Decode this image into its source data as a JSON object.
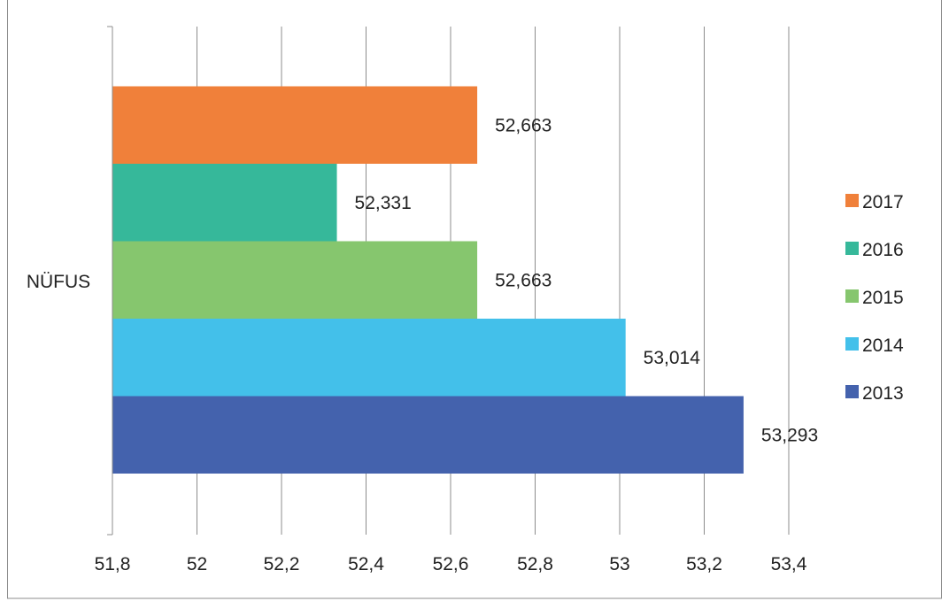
{
  "chart_data": {
    "type": "bar",
    "orientation": "horizontal",
    "categories": [
      "NÜFUS"
    ],
    "series": [
      {
        "name": "2013",
        "values": [
          53.293
        ],
        "label": "53,293",
        "color": "#4462AD"
      },
      {
        "name": "2014",
        "values": [
          53.014
        ],
        "label": "53,014",
        "color": "#43C0EA"
      },
      {
        "name": "2015",
        "values": [
          52.663
        ],
        "label": "52,663",
        "color": "#86C66E"
      },
      {
        "name": "2016",
        "values": [
          52.331
        ],
        "label": "52,331",
        "color": "#36B89A"
      },
      {
        "name": "2017",
        "values": [
          52.663
        ],
        "label": "52,663",
        "color": "#F0803A"
      }
    ],
    "xlim": [
      51.8,
      53.4
    ],
    "x_ticks": [
      51.8,
      52,
      52.2,
      52.4,
      52.6,
      52.8,
      53,
      53.2,
      53.4
    ],
    "x_tick_labels": [
      "51,8",
      "52",
      "52,2",
      "52,4",
      "52,6",
      "52,8",
      "53",
      "53,2",
      "53,4"
    ],
    "grid": "vertical",
    "legend": {
      "placement": "right",
      "order": [
        "2017",
        "2016",
        "2015",
        "2014",
        "2013"
      ]
    },
    "title": "",
    "xlabel": "",
    "ylabel": ""
  }
}
